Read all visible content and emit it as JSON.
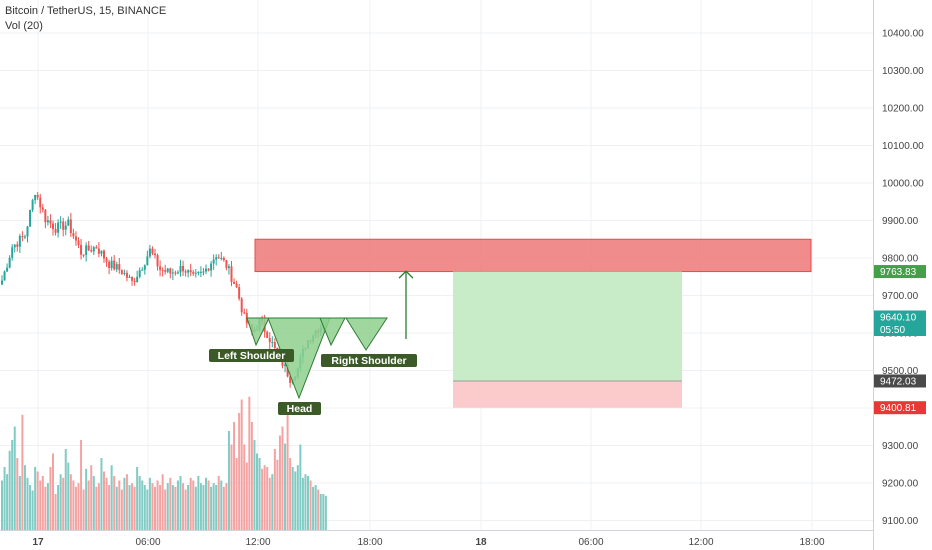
{
  "header": {
    "symbol_line": "Bitcoin / TetherUS, 15, BINANCE",
    "volume_line": "Vol (20)"
  },
  "colors": {
    "up": "#26a69a",
    "down": "#ef5350",
    "vol_up": "#80cbc4",
    "vol_down": "#f4a3a3",
    "resistance_zone": "#f08080",
    "profit_zone": "#c8ebc8",
    "stop_zone": "#fbcaca",
    "pattern_fill": "#8ed08e",
    "pattern_stroke": "#2e7d32",
    "label_bg": "#3c5a28",
    "arrow": "#2e7d32",
    "last_price_tag": "#26a69a",
    "target_tag": "#43a047",
    "entry_tag": "#4a4a4a",
    "stop_tag": "#e53935"
  },
  "chart_data": {
    "type": "candlestick",
    "instrument": "Bitcoin / TetherUS",
    "interval": "15",
    "exchange": "BINANCE",
    "ylim": [
      9075,
      10550
    ],
    "y_ticks": [
      10400,
      10300,
      10200,
      10100,
      10000,
      9900,
      9800,
      9700,
      9600,
      9500,
      9400,
      9300,
      9200,
      9100
    ],
    "y_tick_labels": [
      "10400.00",
      "10300.00",
      "10200.00",
      "10100.00",
      "10000.00",
      "9900.00",
      "9800.00",
      "9700.00",
      "9600.00",
      "9500.00",
      "9400.00",
      "9300.00",
      "9200.00",
      "9100.00"
    ],
    "x_labels": [
      "17",
      "06:00",
      "12:00",
      "18:00",
      "18",
      "06:00",
      "12:00",
      "18:00"
    ],
    "grid": true,
    "candle_anchors": [
      [
        0,
        9740
      ],
      [
        4,
        9830
      ],
      [
        9,
        9860
      ],
      [
        13,
        9980
      ],
      [
        17,
        9905
      ],
      [
        21,
        9880
      ],
      [
        26,
        9890
      ],
      [
        31,
        9815
      ],
      [
        37,
        9830
      ],
      [
        42,
        9785
      ],
      [
        47,
        9765
      ],
      [
        51,
        9735
      ],
      [
        55,
        9780
      ],
      [
        58,
        9820
      ],
      [
        62,
        9770
      ],
      [
        66,
        9760
      ],
      [
        71,
        9775
      ],
      [
        75,
        9745
      ],
      [
        79,
        9760
      ],
      [
        84,
        9810
      ],
      [
        88,
        9780
      ],
      [
        92,
        9720
      ],
      [
        95,
        9640
      ],
      [
        98,
        9600
      ],
      [
        101,
        9630
      ],
      [
        104,
        9600
      ],
      [
        107,
        9555
      ],
      [
        110,
        9520
      ],
      [
        113,
        9480
      ],
      [
        116,
        9505
      ],
      [
        119,
        9570
      ],
      [
        122,
        9600
      ],
      [
        125,
        9620
      ],
      [
        127,
        9640
      ]
    ],
    "volume": [
      55,
      70,
      62,
      88,
      100,
      115,
      80,
      60,
      128,
      72,
      58,
      50,
      44,
      70,
      65,
      55,
      60,
      48,
      52,
      70,
      85,
      40,
      50,
      62,
      58,
      90,
      75,
      62,
      55,
      48,
      52,
      100,
      45,
      68,
      55,
      72,
      60,
      48,
      52,
      80,
      65,
      58,
      50,
      72,
      60,
      48,
      55,
      45,
      58,
      62,
      50,
      52,
      48,
      70,
      60,
      55,
      50,
      45,
      58,
      52,
      48,
      55,
      50,
      62,
      45,
      52,
      58,
      50,
      48,
      55,
      60,
      52,
      45,
      50,
      58,
      55,
      48,
      60,
      52,
      50,
      58,
      55,
      48,
      52,
      50,
      60,
      55,
      48,
      52,
      110,
      95,
      120,
      80,
      130,
      145,
      95,
      75,
      148,
      120,
      100,
      85,
      80,
      68,
      72,
      70,
      58,
      62,
      90,
      78,
      105,
      115,
      96,
      130,
      80,
      70,
      65,
      72,
      95,
      58,
      62,
      60,
      55,
      48,
      50,
      45,
      40,
      40,
      38
    ],
    "current": {
      "price": "9640.10",
      "countdown": "05:50"
    },
    "price_tags": {
      "target": "9763.83",
      "entry": "9472.03",
      "stop": "9400.81"
    },
    "annotations": {
      "resistance_zone": {
        "low": 9763.83,
        "high": 9850
      },
      "long_position": {
        "entry": 9472.03,
        "target": 9763.83,
        "stop": 9400.81
      },
      "arrow": {
        "from": 9600,
        "to": 9765
      },
      "pattern_labels": {
        "left": "Left Shoulder",
        "head": "Head",
        "right": "Right Shoulder"
      }
    }
  }
}
